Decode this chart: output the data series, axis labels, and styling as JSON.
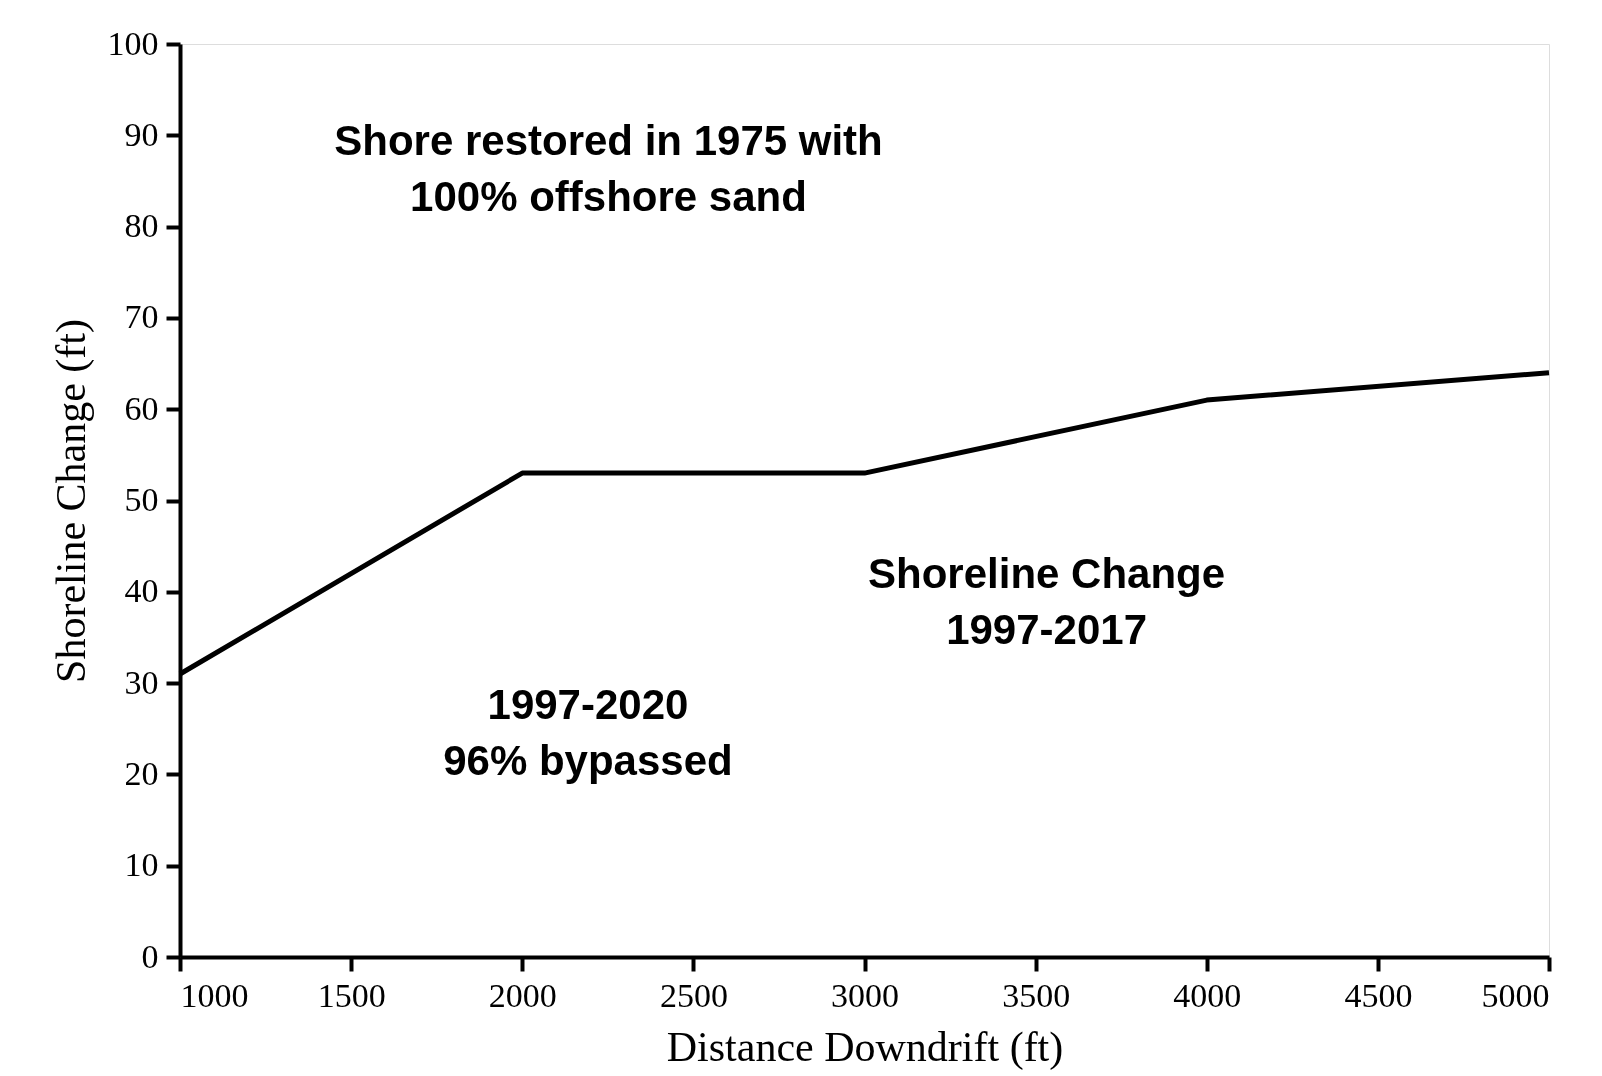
{
  "chart_data": {
    "type": "line",
    "xlabel": "Distance Downdrift (ft)",
    "ylabel": "Shoreline Change (ft)",
    "x": [
      1000,
      2000,
      3000,
      4000,
      5000
    ],
    "series": [
      {
        "color": "#000000",
        "values": [
          31,
          53,
          53,
          61,
          64
        ]
      }
    ],
    "xlim": [
      1000,
      5000
    ],
    "xticks": [
      1000,
      1500,
      2000,
      2500,
      3000,
      3500,
      4000,
      4500,
      5000
    ],
    "ylim": [
      0,
      100
    ],
    "yticks": [
      0,
      10,
      20,
      30,
      40,
      50,
      60,
      70,
      80,
      90,
      100
    ],
    "grid": false,
    "marker": "none",
    "line_style": "solid",
    "annotations": [
      "Shore restored in 1975 with\n100% offshore sand",
      "Shoreline Change\n1997-2017",
      "1997-2020\n96% bypassed"
    ]
  }
}
